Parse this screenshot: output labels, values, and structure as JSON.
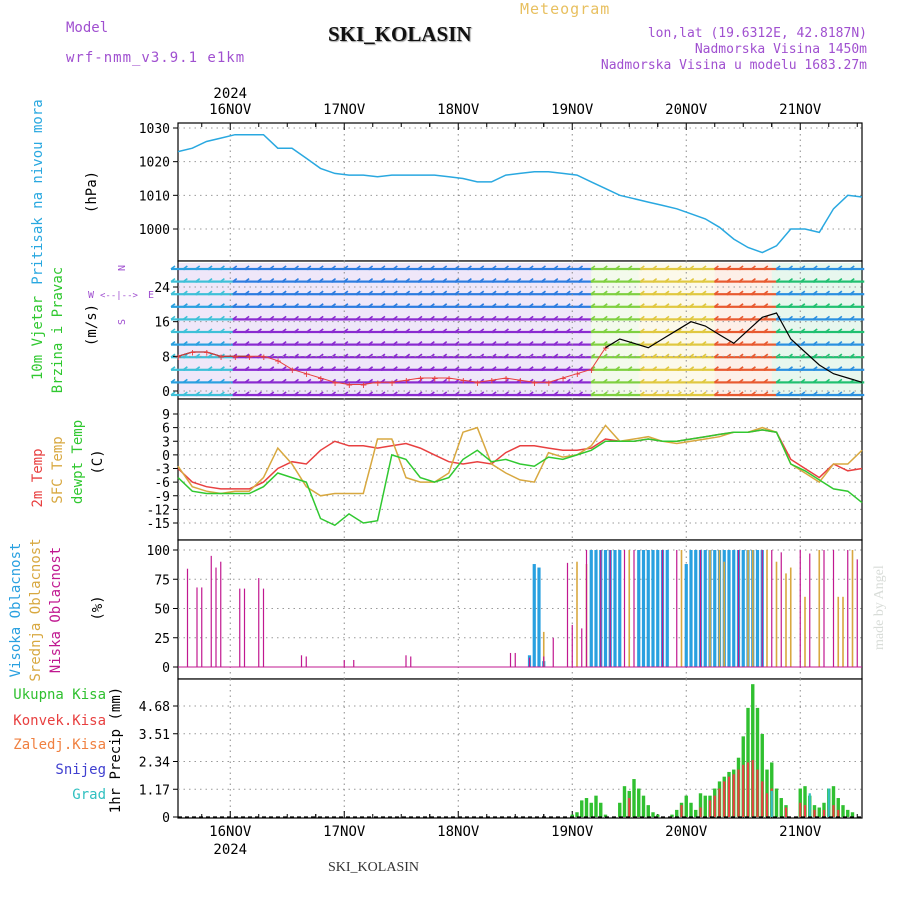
{
  "header": {
    "model_label": "Model",
    "model_name": "wrf-nmm_v3.9.1 e1km",
    "station": "SKI_KOLASIN",
    "meteogram_label": "Meteogram",
    "lonlat": "lon,lat (19.6312E, 42.8187N)",
    "elevation": "Nadmorska Visina 1450m",
    "model_elevation": "Nadmorska Visina u modelu 1683.27m"
  },
  "footer_station": "SKI_KOLASIN",
  "made_by": "made by Angel",
  "time_axis": {
    "year": "2024",
    "days": [
      "16NOV",
      "17NOV",
      "18NOV",
      "19NOV",
      "20NOV",
      "21NOV"
    ],
    "start_hour": -11,
    "end_hour": 133
  },
  "colors": {
    "pressure": "#29a8e0",
    "t2m": "#e84040",
    "sfc": "#d8a840",
    "dewpt": "#30c830",
    "cloud_high": "#29a0e0",
    "cloud_mid": "#d8a840",
    "cloud_low": "#c01890",
    "precip_total": "#30c030",
    "precip_conv": "#e84040",
    "precip_frz": "#f08040",
    "snow": "#4040d0",
    "graup": "#30c0c0"
  },
  "chart_data": [
    {
      "id": "pressure",
      "type": "line",
      "ylabel": "(hPa)",
      "side_labels": [
        {
          "text": "Pritisak na nivou mora",
          "color": "#29a8e0"
        }
      ],
      "yticks": [
        1000,
        1010,
        1020,
        1030
      ],
      "ylim": [
        989,
        1032
      ],
      "grid": true,
      "series": [
        {
          "x": [
            -11,
            -8,
            -5,
            -2,
            1,
            4,
            7,
            10,
            13,
            16,
            19,
            22,
            25,
            28,
            31,
            34,
            37,
            40,
            43,
            46,
            49,
            52,
            55,
            58,
            61,
            64,
            67,
            70,
            73,
            76,
            79,
            82,
            85,
            88,
            91,
            94,
            97,
            100,
            103,
            106,
            109,
            112,
            115,
            118,
            121,
            124,
            127,
            130,
            133
          ],
          "values": [
            1023,
            1024,
            1026,
            1027,
            1028,
            1028,
            1028,
            1024,
            1024,
            1021,
            1018,
            1016.5,
            1016,
            1016,
            1015.5,
            1016,
            1016,
            1016,
            1016,
            1015.5,
            1015,
            1014,
            1014,
            1016,
            1016.5,
            1017,
            1017,
            1016.5,
            1016,
            1014,
            1012,
            1010,
            1009,
            1008,
            1007,
            1006,
            1004.5,
            1003,
            1000.5,
            997,
            994.5,
            993,
            995,
            1000,
            1000,
            999,
            1006,
            1010,
            1009.5
          ]
        }
      ]
    },
    {
      "id": "wind",
      "type": "line",
      "ylabel": "(m/s)",
      "side_labels": [
        {
          "text": "10m Vjetar",
          "color": "#30c830"
        },
        {
          "text": "Brzina i Pravac",
          "color": "#30c830"
        }
      ],
      "compass": [
        "N",
        "W",
        "E",
        "S"
      ],
      "yticks": [
        0,
        8,
        16,
        24
      ],
      "ylim": [
        0,
        29
      ],
      "grid": true,
      "series": [
        {
          "x": [
            -11,
            -8,
            -5,
            -2,
            1,
            4,
            7,
            10,
            13,
            16,
            19,
            22,
            25,
            28,
            31,
            34,
            37,
            40,
            43,
            46,
            49,
            52,
            55,
            58,
            61,
            64,
            67,
            70,
            73,
            76,
            79,
            82,
            85,
            88,
            91,
            94,
            97,
            100,
            103,
            106,
            109,
            112,
            115,
            118,
            121,
            124,
            127,
            130,
            133
          ],
          "values": [
            8,
            9,
            9,
            8,
            8,
            8,
            8,
            7,
            5,
            4,
            3,
            2,
            1.5,
            1.5,
            2,
            2,
            2.5,
            3,
            3,
            3,
            2.5,
            2,
            2.5,
            3,
            2.5,
            2,
            2,
            3,
            4,
            5,
            10,
            12,
            11,
            10,
            12,
            14,
            16,
            15,
            13,
            11,
            14,
            17,
            18,
            12,
            9,
            6,
            4,
            3,
            2
          ]
        }
      ]
    },
    {
      "id": "temp",
      "type": "line",
      "ylabel": "(C)",
      "side_labels": [
        {
          "text": "2m Temp",
          "color": "#e84040"
        },
        {
          "text": "SFC Temp",
          "color": "#d8a840"
        },
        {
          "text": "dewpt Temp",
          "color": "#30c830"
        }
      ],
      "yticks": [
        -15,
        -12,
        -9,
        -6,
        -3,
        0,
        3,
        6,
        9
      ],
      "ylim": [
        -17.5,
        9
      ],
      "grid": true,
      "series": [
        {
          "name": "2m Temp",
          "x": [
            -11,
            -8,
            -5,
            -2,
            1,
            4,
            7,
            10,
            13,
            16,
            19,
            22,
            25,
            28,
            31,
            34,
            37,
            40,
            43,
            46,
            49,
            52,
            55,
            58,
            61,
            64,
            67,
            70,
            73,
            76,
            79,
            82,
            85,
            88,
            91,
            94,
            97,
            100,
            103,
            106,
            109,
            112,
            115,
            118,
            121,
            124,
            127,
            130,
            133
          ],
          "values": [
            -3,
            -6,
            -7,
            -7.5,
            -7.5,
            -7.5,
            -6,
            -3,
            -1.5,
            -2,
            1,
            3,
            2,
            2,
            1.5,
            2,
            2.5,
            1.5,
            0,
            -1.5,
            -2,
            -1.5,
            -2,
            0.5,
            2,
            2,
            1.5,
            1,
            1,
            1.5,
            3.5,
            3,
            3,
            3.5,
            3,
            3,
            3.5,
            4,
            4.5,
            5,
            5,
            5.5,
            5,
            -1,
            -3,
            -5,
            -2,
            -3.5,
            -3
          ]
        },
        {
          "name": "SFC Temp",
          "x": [
            -11,
            -8,
            -5,
            -2,
            1,
            4,
            7,
            10,
            13,
            16,
            19,
            22,
            25,
            28,
            31,
            34,
            37,
            40,
            43,
            46,
            49,
            52,
            55,
            58,
            61,
            64,
            67,
            70,
            73,
            76,
            79,
            82,
            85,
            88,
            91,
            94,
            97,
            100,
            103,
            106,
            109,
            112,
            115,
            118,
            121,
            124,
            127,
            130,
            133
          ],
          "values": [
            -2.5,
            -7,
            -8,
            -8.5,
            -8,
            -8,
            -5,
            1.5,
            -2,
            -7,
            -9,
            -8.5,
            -8.5,
            -8.5,
            3.5,
            3.5,
            -5,
            -6,
            -6,
            -4,
            5,
            6,
            -2,
            -4,
            -5.5,
            -6,
            0.5,
            -0.5,
            0,
            2,
            6.5,
            3,
            3.5,
            4,
            3,
            2.5,
            3,
            3.5,
            4,
            5,
            5,
            6,
            5,
            -2,
            -4,
            -6,
            -2,
            -2,
            1
          ]
        },
        {
          "name": "dewpt Temp",
          "x": [
            -11,
            -8,
            -5,
            -2,
            1,
            4,
            7,
            10,
            13,
            16,
            19,
            22,
            25,
            28,
            31,
            34,
            37,
            40,
            43,
            46,
            49,
            52,
            55,
            58,
            61,
            64,
            67,
            70,
            73,
            76,
            79,
            82,
            85,
            88,
            91,
            94,
            97,
            100,
            103,
            106,
            109,
            112,
            115,
            118,
            121,
            124,
            127,
            130,
            133
          ],
          "values": [
            -5,
            -8,
            -8.5,
            -8.5,
            -8.5,
            -8.5,
            -7,
            -4,
            -5,
            -6,
            -14,
            -15.5,
            -13,
            -15,
            -14.5,
            0,
            -1,
            -5,
            -6,
            -5,
            -1,
            1,
            -1.5,
            -1,
            -2,
            -2.5,
            -0.5,
            -1,
            0,
            1,
            3,
            3,
            3,
            3.5,
            3,
            3,
            3.5,
            4,
            4.5,
            5,
            5,
            5.5,
            5,
            -2,
            -3.5,
            -5.5,
            -7.5,
            -8,
            -10.5
          ]
        }
      ]
    },
    {
      "id": "cloud",
      "type": "bar",
      "ylabel": "(%)",
      "side_labels": [
        {
          "text": "Visoka Oblacnost",
          "color": "#29a0e0"
        },
        {
          "text": "Srednja Oblacnost",
          "color": "#d8a840"
        },
        {
          "text": "Niska Oblacnost",
          "color": "#c01890"
        }
      ],
      "yticks": [
        0,
        25,
        50,
        75,
        100
      ],
      "ylim": [
        0,
        100
      ],
      "grid": true,
      "series": [
        {
          "name": "Visoka Oblacnost",
          "x": [
            63,
            64,
            65,
            66,
            76,
            77,
            78,
            79,
            80,
            81,
            82,
            86,
            87,
            88,
            89,
            90,
            91,
            92,
            96,
            97,
            98,
            99,
            100,
            101,
            102,
            103,
            104,
            105,
            106,
            107,
            108,
            109,
            110,
            111,
            112
          ],
          "values": [
            10,
            88,
            85,
            5,
            100,
            100,
            100,
            100,
            100,
            100,
            100,
            100,
            100,
            100,
            100,
            100,
            100,
            100,
            88,
            100,
            100,
            100,
            100,
            100,
            100,
            100,
            100,
            100,
            100,
            100,
            100,
            100,
            100,
            100,
            100
          ]
        },
        {
          "name": "Srednja Oblacnost",
          "x": [
            66,
            73,
            75,
            84,
            95,
            101,
            103,
            104,
            109,
            110,
            113,
            115,
            117,
            118,
            121,
            124,
            128,
            129,
            131
          ],
          "values": [
            30,
            90,
            88,
            100,
            100,
            100,
            100,
            90,
            100,
            100,
            100,
            90,
            80,
            85,
            60,
            100,
            60,
            60,
            100
          ]
        },
        {
          "name": "Niska Oblacnost",
          "x": [
            -9,
            -7,
            -6,
            -4,
            -3,
            -2,
            2,
            3,
            6,
            7,
            15,
            16,
            24,
            26,
            37,
            38,
            59,
            60,
            63,
            66,
            68,
            71,
            72,
            74,
            75,
            78,
            80,
            83,
            85,
            91,
            94,
            99,
            107,
            112,
            114,
            116,
            120,
            122,
            125,
            127,
            130,
            132
          ],
          "values": [
            84,
            68,
            68,
            95,
            85,
            90,
            67,
            67,
            76,
            67,
            10,
            9,
            6,
            6,
            10,
            9,
            12,
            12,
            8,
            9,
            25,
            89,
            36,
            33,
            100,
            100,
            100,
            100,
            100,
            100,
            100,
            100,
            100,
            100,
            100,
            98,
            100,
            97,
            100,
            100,
            100,
            92
          ]
        }
      ]
    },
    {
      "id": "precip",
      "type": "bar",
      "ylabel": "1hr Precip (mm)",
      "side_labels": [
        {
          "text": "Ukupna Kisa",
          "color": "#30c030"
        },
        {
          "text": "Konvek.Kisa",
          "color": "#e84040"
        },
        {
          "text": "Zaledj.Kisa",
          "color": "#f08040"
        },
        {
          "text": "Snijeg",
          "color": "#4040d0"
        },
        {
          "text": "Grad",
          "color": "#30c0c0"
        }
      ],
      "yticks": [
        0,
        1.17,
        2.34,
        3.51,
        4.68
      ],
      "ylim": [
        0,
        5.8
      ],
      "grid": true,
      "series": [
        {
          "name": "Ukupna Kisa",
          "x": [
            72,
            73,
            74,
            75,
            76,
            77,
            78,
            79,
            82,
            83,
            84,
            85,
            86,
            87,
            88,
            89,
            90,
            93,
            94,
            95,
            96,
            97,
            98,
            99,
            100,
            101,
            102,
            103,
            104,
            105,
            106,
            107,
            108,
            109,
            110,
            111,
            112,
            113,
            114,
            115,
            116,
            117,
            120,
            121,
            122,
            123,
            124,
            125,
            126,
            127,
            128,
            129,
            130,
            131
          ],
          "values": [
            0.1,
            0.2,
            0.7,
            0.8,
            0.6,
            0.9,
            0.6,
            0.1,
            0.6,
            1.3,
            1.1,
            1.6,
            1.2,
            0.9,
            0.5,
            0.2,
            0.1,
            0.1,
            0.3,
            0.6,
            0.9,
            0.6,
            0.3,
            1.0,
            0.9,
            0.9,
            1.2,
            1.5,
            1.7,
            1.9,
            2.0,
            2.5,
            3.4,
            4.6,
            5.6,
            4.6,
            3.5,
            2.0,
            2.3,
            1.2,
            0.8,
            0.5,
            1.2,
            1.3,
            0.9,
            0.5,
            0.4,
            0.6,
            1.2,
            1.3,
            0.8,
            0.5,
            0.3,
            0.2
          ]
        },
        {
          "name": "Konvek.Kisa",
          "x": [
            84,
            95,
            99,
            101,
            102,
            103,
            104,
            105,
            106,
            107,
            108,
            109,
            110,
            111,
            112,
            113,
            114,
            117,
            120,
            121,
            123,
            125,
            126,
            127,
            128
          ],
          "values": [
            0.8,
            0.5,
            0.4,
            0.7,
            0.9,
            1.2,
            1.5,
            1.7,
            1.8,
            2.0,
            2.2,
            2.3,
            2.4,
            2.0,
            1.5,
            1.0,
            1.2,
            0.4,
            0.6,
            0.5,
            0.3,
            0.3,
            0.4,
            0.5,
            0.3
          ]
        },
        {
          "name": "Zaledj.Kisa",
          "x": [],
          "values": []
        },
        {
          "name": "Snijeg",
          "x": [],
          "values": []
        },
        {
          "name": "Grad",
          "x": [
            114,
            122,
            126
          ],
          "values": [
            1.1,
            1.0,
            1.2
          ]
        }
      ]
    }
  ]
}
